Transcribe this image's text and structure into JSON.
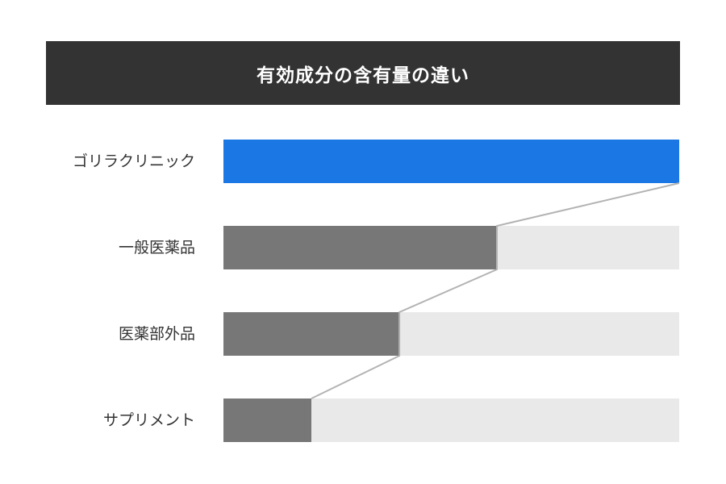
{
  "title": "有効成分の含有量の違い",
  "colors": {
    "title_bg": "#333333",
    "highlight": "#1a77e3",
    "bar": "#777777",
    "track": "#e9e9e9",
    "connector": "#b3b3b3"
  },
  "rows": [
    {
      "label": "ゴリラクリニック",
      "value": 100
    },
    {
      "label": "一般医薬品",
      "value": 60
    },
    {
      "label": "医薬部外品",
      "value": 38.6
    },
    {
      "label": "サプリメント",
      "value": 19.3
    }
  ],
  "chart_data": {
    "type": "bar",
    "orientation": "horizontal",
    "title": "有効成分の含有量の違い",
    "categories": [
      "ゴリラクリニック",
      "一般医薬品",
      "医薬部外品",
      "サプリメント"
    ],
    "values": [
      100,
      60,
      38.6,
      19.3
    ],
    "xlabel": "",
    "ylabel": "",
    "xlim": [
      0,
      100
    ],
    "grid": false,
    "legend": null,
    "notes": "Relative amounts (no axis shown); values estimated as % of the longest bar. Connector lines link bar ends."
  }
}
